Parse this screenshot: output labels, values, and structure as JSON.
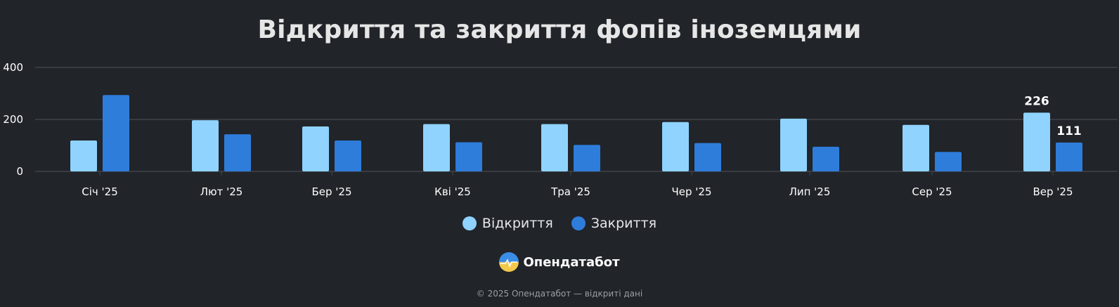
{
  "title": "Відкриття та закриття фопів іноземцями",
  "legend": {
    "opened_label": "Відкриття",
    "closed_label": "Закриття"
  },
  "brand": {
    "name": "Опендатабот"
  },
  "footer": {
    "text": "© 2025 Опендатабот — відкриті дані"
  },
  "colors": {
    "background": "#212429",
    "opened": "#8fd3fe",
    "closed": "#2e7ddb",
    "grid": "#40444b",
    "axis_text": "#ffffff"
  },
  "chart_data": {
    "type": "bar",
    "title": "Відкриття та закриття фопів іноземцями",
    "categories": [
      "Січ '25",
      "Лют '25",
      "Бер '25",
      "Кві '25",
      "Тра '25",
      "Чер '25",
      "Лип '25",
      "Сер '25",
      "Вер '25"
    ],
    "series": [
      {
        "name": "Відкриття",
        "values": [
          119,
          197,
          173,
          182,
          182,
          190,
          203,
          179,
          226
        ],
        "data_labels": [
          null,
          null,
          null,
          null,
          null,
          null,
          null,
          null,
          "226"
        ]
      },
      {
        "name": "Закриття",
        "values": [
          294,
          143,
          119,
          112,
          102,
          109,
          95,
          75,
          111
        ],
        "data_labels": [
          null,
          null,
          null,
          null,
          null,
          null,
          null,
          null,
          "111"
        ]
      }
    ],
    "y_ticks": [
      "0",
      "200",
      "400"
    ],
    "ylim": [
      0,
      400
    ],
    "grid": true,
    "legend_position": "bottom"
  }
}
